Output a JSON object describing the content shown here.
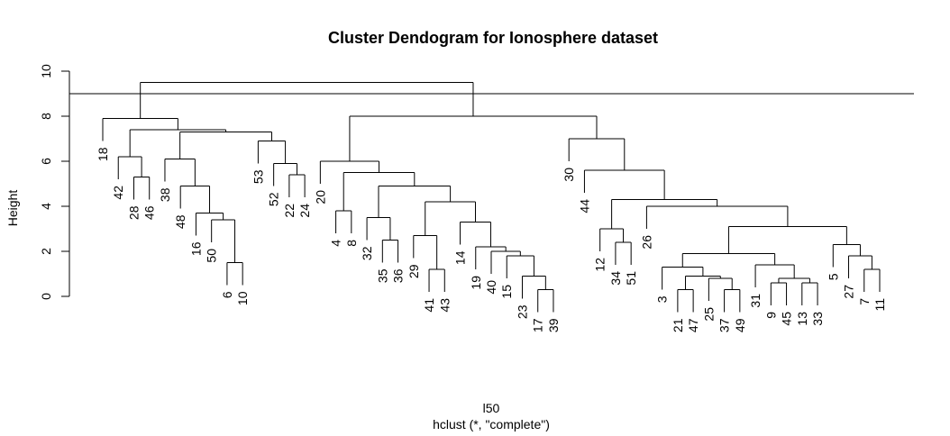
{
  "chart_data": {
    "type": "dendrogram",
    "title": "Cluster Dendogram for Ionosphere dataset",
    "xlabel": "l50",
    "sub": "hclust (*, \"complete\")",
    "ylabel": "Height",
    "ylim": [
      0,
      10
    ],
    "yticks": [
      0,
      2,
      4,
      6,
      8,
      10
    ],
    "cut_height": 9,
    "leaf_order": [
      18,
      42,
      28,
      46,
      38,
      48,
      16,
      50,
      6,
      10,
      53,
      52,
      22,
      24,
      20,
      4,
      8,
      32,
      35,
      36,
      29,
      41,
      43,
      14,
      19,
      40,
      15,
      23,
      17,
      39,
      30,
      44,
      12,
      34,
      51,
      26,
      3,
      21,
      47,
      25,
      37,
      49,
      31,
      9,
      45,
      13,
      33,
      5,
      27,
      7,
      11
    ],
    "merges": [
      {
        "height": 1.5,
        "left": "6",
        "right": "10"
      },
      {
        "height": 3.4,
        "left": "50",
        "right": "(6,10)"
      },
      {
        "height": 3.7,
        "left": "16",
        "right": "(50,6,10)"
      },
      {
        "height": 4.9,
        "left": "48",
        "right": "(16,50,6,10)"
      },
      {
        "height": 6.1,
        "left": "38",
        "right": "(48,...)"
      },
      {
        "height": 5.3,
        "left": "28",
        "right": "46"
      },
      {
        "height": 6.2,
        "left": "42",
        "right": "(28,46)"
      },
      {
        "height": 5.4,
        "left": "22",
        "right": "24"
      },
      {
        "height": 5.9,
        "left": "52",
        "right": "(22,24)"
      },
      {
        "height": 6.9,
        "left": "53",
        "right": "(52,22,24)"
      },
      {
        "height": 7.3,
        "left": "(38,...)",
        "right": "(53,...)"
      },
      {
        "height": 7.4,
        "left": "(42,...)",
        "right": "(38,...,53,...)"
      },
      {
        "height": 7.9,
        "left": "18",
        "right": "(42,...)"
      },
      {
        "height": 3.8,
        "left": "4",
        "right": "8"
      },
      {
        "height": 2.5,
        "left": "35",
        "right": "36"
      },
      {
        "height": 3.5,
        "left": "32",
        "right": "(35,36)"
      },
      {
        "height": 1.2,
        "left": "41",
        "right": "43"
      },
      {
        "height": 2.7,
        "left": "29",
        "right": "(41,43)"
      },
      {
        "height": 0.3,
        "left": "17",
        "right": "39"
      },
      {
        "height": 0.9,
        "left": "23",
        "right": "(17,39)"
      },
      {
        "height": 1.8,
        "left": "15",
        "right": "(23,17,39)"
      },
      {
        "height": 2.0,
        "left": "40",
        "right": "(15,...)"
      },
      {
        "height": 2.2,
        "left": "19",
        "right": "(40,...)"
      },
      {
        "height": 3.3,
        "left": "14",
        "right": "(19,...)"
      },
      {
        "height": 4.2,
        "left": "(29,...)",
        "right": "(14,...)"
      },
      {
        "height": 4.9,
        "left": "(32,...)",
        "right": "(29,...,14,...)"
      },
      {
        "height": 5.5,
        "left": "(4,8)",
        "right": "(32,...)"
      },
      {
        "height": 6.0,
        "left": "20",
        "right": "(4,8,...)"
      },
      {
        "height": 2.4,
        "left": "34",
        "right": "51"
      },
      {
        "height": 3.0,
        "left": "12",
        "right": "(34,51)"
      },
      {
        "height": 0.3,
        "left": "21",
        "right": "47"
      },
      {
        "height": 0.3,
        "left": "37",
        "right": "49"
      },
      {
        "height": 0.8,
        "left": "25",
        "right": "(37,49)"
      },
      {
        "height": 0.9,
        "left": "(21,47)",
        "right": "(25,37,49)"
      },
      {
        "height": 1.3,
        "left": "3",
        "right": "(21,...)"
      },
      {
        "height": 0.6,
        "left": "9",
        "right": "45"
      },
      {
        "height": 0.6,
        "left": "13",
        "right": "33"
      },
      {
        "height": 0.8,
        "left": "(9,45)",
        "right": "(13,33)"
      },
      {
        "height": 1.4,
        "left": "31",
        "right": "(9,45,13,33)"
      },
      {
        "height": 1.9,
        "left": "(3,...)",
        "right": "(31,...)"
      },
      {
        "height": 1.2,
        "left": "7",
        "right": "11"
      },
      {
        "height": 1.8,
        "left": "27",
        "right": "(7,11)"
      },
      {
        "height": 2.3,
        "left": "5",
        "right": "(27,7,11)"
      },
      {
        "height": 3.1,
        "left": "(3,...,31,...)",
        "right": "(5,...)"
      },
      {
        "height": 4.0,
        "left": "26",
        "right": "(3,...,5,...)"
      },
      {
        "height": 4.3,
        "left": "(12,34,51)",
        "right": "(26,...)"
      },
      {
        "height": 5.6,
        "left": "44",
        "right": "(12,...,26,...)"
      },
      {
        "height": 7.0,
        "left": "30",
        "right": "(44,...)"
      },
      {
        "height": 8.0,
        "left": "(20,...)",
        "right": "(30,...)"
      },
      {
        "height": 9.5,
        "left": "(18,...)",
        "right": "(20,...,30,...)"
      }
    ]
  }
}
